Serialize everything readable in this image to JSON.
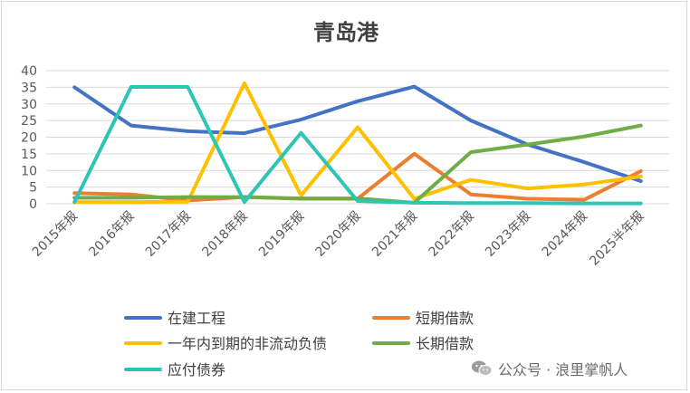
{
  "chart_data": {
    "type": "line",
    "title": "青岛港",
    "categories": [
      "2015年报",
      "2016年报",
      "2017年报",
      "2018年报",
      "2019年报",
      "2020年报",
      "2021年报",
      "2022年报",
      "2023年报",
      "2024年报",
      "2025半年报"
    ],
    "ylim": [
      0,
      40
    ],
    "yticks": [
      0,
      5,
      10,
      15,
      20,
      25,
      30,
      35,
      40
    ],
    "grid": true,
    "legend_position": "bottom",
    "series": [
      {
        "name": "在建工程",
        "color": "#4472C4",
        "values": [
          35,
          23.5,
          21.8,
          21.2,
          25.3,
          30.8,
          35.2,
          25,
          17.8,
          12.5,
          6.8
        ]
      },
      {
        "name": "短期借款",
        "color": "#ED7D31",
        "values": [
          3.2,
          2.8,
          1,
          2,
          1.5,
          1.5,
          15,
          2.8,
          1.5,
          1.2,
          9.8
        ]
      },
      {
        "name": "一年内到期的非流动负债",
        "color": "#FFC000",
        "values": [
          0.5,
          0.5,
          0.6,
          36.2,
          2.5,
          23,
          1.5,
          7.2,
          4.6,
          5.8,
          8.2
        ]
      },
      {
        "name": "长期借款",
        "color": "#70AD47",
        "values": [
          1.8,
          1.8,
          2,
          2,
          1.6,
          1.6,
          0.3,
          15.5,
          17.8,
          20.2,
          23.5
        ]
      },
      {
        "name": "应付债券",
        "color": "#2EC4B6",
        "values": [
          0.5,
          35.1,
          35.1,
          0.5,
          21.3,
          0.8,
          0.3,
          0.2,
          0.2,
          0.1,
          0.1
        ]
      }
    ]
  },
  "watermark": {
    "text": "公众号 · 浪里掌帆人",
    "icon": "wechat-icon"
  }
}
